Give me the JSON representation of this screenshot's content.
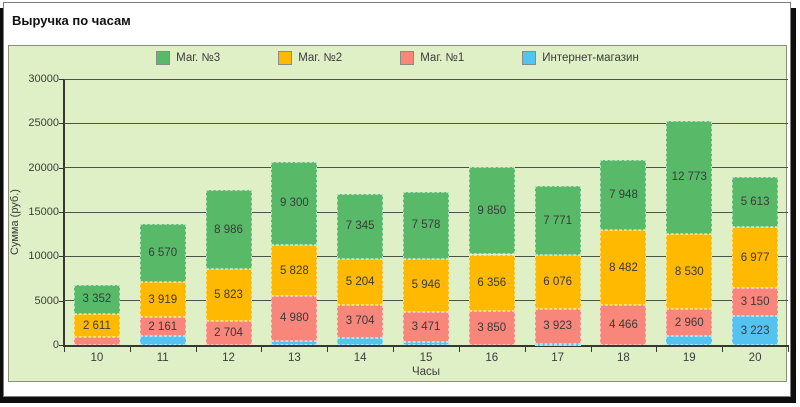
{
  "chart_data": {
    "type": "bar",
    "stacked": true,
    "title": "Выручка по часам",
    "xlabel": "Часы",
    "ylabel": "Сумма (руб.)",
    "ylim": [
      0,
      30000
    ],
    "yticks": [
      0,
      5000,
      10000,
      15000,
      20000,
      25000,
      30000
    ],
    "ytick_labels": [
      "0",
      "5000",
      "10000",
      "15000",
      "20000",
      "25000",
      "30000"
    ],
    "grid": true,
    "legend_position": "top",
    "plot_background": "#dff0c6",
    "categories": [
      "10",
      "11",
      "12",
      "13",
      "14",
      "15",
      "16",
      "17",
      "18",
      "19",
      "20"
    ],
    "series": [
      {
        "key": "internet",
        "name": "Интернет-магазин",
        "color": "#55c3f0",
        "values": [
          0,
          1000,
          0,
          500,
          800,
          300,
          0,
          150,
          0,
          1050,
          3223
        ],
        "labels": [
          "",
          "",
          "",
          "",
          "",
          "",
          "",
          "",
          "",
          "",
          "3 223"
        ]
      },
      {
        "key": "mag1",
        "name": "Маг. №1",
        "color": "#f9867b",
        "values": [
          850,
          2161,
          2704,
          4980,
          3704,
          3471,
          3850,
          3923,
          4466,
          2960,
          3150
        ],
        "labels": [
          "",
          "2 161",
          "2 704",
          "4 980",
          "3 704",
          "3 471",
          "3 850",
          "3 923",
          "4 466",
          "2 960",
          "3 150"
        ]
      },
      {
        "key": "mag2",
        "name": "Маг. №2",
        "color": "#ffb900",
        "values": [
          2611,
          3919,
          5823,
          5828,
          5204,
          5946,
          6356,
          6076,
          8482,
          8530,
          6977
        ],
        "labels": [
          "2 611",
          "3 919",
          "5 823",
          "5 828",
          "5 204",
          "5 946",
          "6 356",
          "6 076",
          "8 482",
          "8 530",
          "6 977"
        ]
      },
      {
        "key": "mag3",
        "name": "Маг. №3",
        "color": "#58ba68",
        "values": [
          3352,
          6570,
          8986,
          9300,
          7345,
          7578,
          9850,
          7771,
          7948,
          12773,
          5613
        ],
        "labels": [
          "3 352",
          "6 570",
          "8 986",
          "9 300",
          "7 345",
          "7 578",
          "9 850",
          "7 771",
          "7 948",
          "12 773",
          "5 613"
        ]
      }
    ],
    "legend": [
      {
        "label": "Маг. №3",
        "color": "#58ba68"
      },
      {
        "label": "Маг. №2",
        "color": "#ffb900"
      },
      {
        "label": "Маг. №1",
        "color": "#f9867b"
      },
      {
        "label": "Интернет-магазин",
        "color": "#55c3f0"
      }
    ]
  }
}
